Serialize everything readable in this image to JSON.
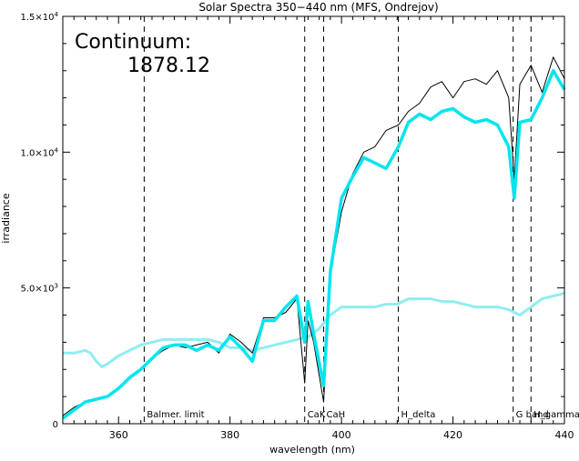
{
  "chart_data": {
    "type": "line",
    "title": "Solar Spectra 350−440 nm (MFS, Ondrejov)",
    "xlabel": "wavelength (nm)",
    "ylabel": "irradiance",
    "xlim": [
      350,
      440
    ],
    "ylim": [
      0,
      15000
    ],
    "x_ticks": [
      {
        "value": 360,
        "label": "360"
      },
      {
        "value": 380,
        "label": "380"
      },
      {
        "value": 400,
        "label": "400"
      },
      {
        "value": 420,
        "label": "420"
      },
      {
        "value": 440,
        "label": "440"
      }
    ],
    "y_ticks": [
      {
        "value": 0,
        "label": "0",
        "mant": "",
        "exp": ""
      },
      {
        "value": 5000,
        "label": "",
        "mant": "5.0×10",
        "exp": "3"
      },
      {
        "value": 10000,
        "label": "",
        "mant": "1.0×10",
        "exp": "4"
      },
      {
        "value": 15000,
        "label": "",
        "mant": "1.5×10",
        "exp": "4"
      }
    ],
    "annotations": {
      "continuum_label": "Continuum:",
      "continuum_value": "1878.12"
    },
    "spectral_lines": [
      {
        "x": 364.6,
        "label": "Balmer. limit"
      },
      {
        "x": 393.4,
        "label": "CaK"
      },
      {
        "x": 396.8,
        "label": "CaH"
      },
      {
        "x": 410.2,
        "label": "H_delta"
      },
      {
        "x": 430.8,
        "label": "G band"
      },
      {
        "x": 434.0,
        "label": "H_gamma"
      }
    ],
    "colors": {
      "spectrum": "#000000",
      "smoothed": "#00e5ee",
      "continuum": "#8eeef2"
    },
    "series": [
      {
        "name": "",
        "style": "high-resolution spectrum (black)",
        "x": [
          350,
          352,
          354,
          356,
          358,
          360,
          362,
          364,
          366,
          368,
          370,
          372,
          374,
          376,
          378,
          380,
          382,
          384,
          386,
          388,
          390,
          392,
          393.4,
          394,
          395,
          396.8,
          398,
          400,
          402,
          404,
          406,
          408,
          410.2,
          412,
          414,
          416,
          418,
          420,
          422,
          424,
          426,
          428,
          430,
          431,
          432,
          434,
          436,
          438,
          440
        ],
        "y": [
          300,
          600,
          800,
          900,
          1000,
          1300,
          1700,
          2000,
          2400,
          2700,
          2900,
          2800,
          2900,
          3000,
          2600,
          3300,
          3000,
          2600,
          3900,
          3900,
          4100,
          4600,
          1500,
          3800,
          3000,
          800,
          5500,
          7800,
          9200,
          10000,
          10200,
          10800,
          11000,
          11500,
          11800,
          12400,
          12600,
          12000,
          12600,
          12700,
          12500,
          13000,
          12000,
          9000,
          12500,
          13200,
          12200,
          13500,
          12700
        ]
      },
      {
        "name": "",
        "style": "smoothed spectrum (thick cyan)",
        "x": [
          350,
          352,
          354,
          356,
          358,
          360,
          362,
          364,
          366,
          368,
          370,
          372,
          374,
          376,
          378,
          380,
          382,
          384,
          386,
          388,
          390,
          392,
          393.4,
          394,
          395,
          396.8,
          398,
          400,
          402,
          404,
          406,
          408,
          410.2,
          412,
          414,
          416,
          418,
          420,
          422,
          424,
          426,
          428,
          430,
          431,
          432,
          434,
          436,
          438,
          440
        ],
        "y": [
          200,
          500,
          800,
          900,
          1000,
          1300,
          1700,
          2000,
          2400,
          2800,
          2900,
          2900,
          2700,
          2900,
          2700,
          3200,
          2800,
          2300,
          3800,
          3800,
          4300,
          4700,
          3000,
          4500,
          3300,
          1400,
          5600,
          8300,
          9100,
          9800,
          9600,
          9400,
          10200,
          11100,
          11400,
          11200,
          11500,
          11600,
          11300,
          11100,
          11200,
          11000,
          10200,
          8300,
          11100,
          11200,
          12000,
          13000,
          12300
        ]
      },
      {
        "name": "",
        "style": "continuum curve (light cyan)",
        "x": [
          350,
          352,
          354,
          355,
          356,
          357,
          358,
          360,
          362,
          364,
          366,
          368,
          370,
          372,
          374,
          376,
          378,
          380,
          382,
          384,
          386,
          388,
          390,
          392,
          394,
          396,
          398,
          400,
          402,
          404,
          406,
          408,
          410,
          412,
          414,
          416,
          418,
          420,
          422,
          424,
          426,
          428,
          430,
          432,
          434,
          436,
          438,
          440
        ],
        "y": [
          2600,
          2600,
          2700,
          2600,
          2300,
          2100,
          2200,
          2500,
          2700,
          2900,
          3000,
          3100,
          3100,
          3100,
          3100,
          3100,
          3000,
          2800,
          2800,
          2700,
          2800,
          2900,
          3000,
          3100,
          3200,
          3500,
          4000,
          4300,
          4300,
          4300,
          4300,
          4400,
          4400,
          4600,
          4600,
          4600,
          4500,
          4500,
          4400,
          4300,
          4300,
          4300,
          4200,
          4000,
          4300,
          4600,
          4700,
          4800
        ]
      }
    ]
  }
}
